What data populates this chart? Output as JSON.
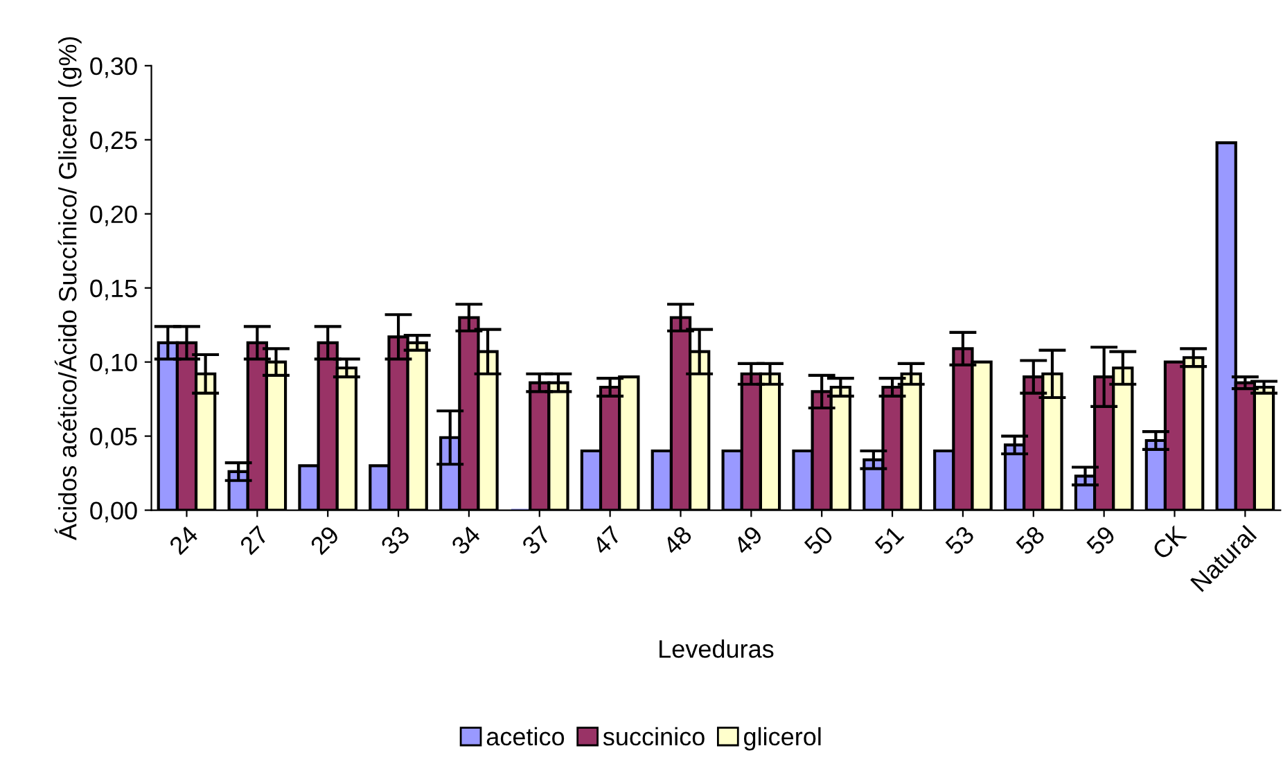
{
  "chart_data": {
    "type": "bar",
    "xlabel": "Leveduras",
    "ylabel": "Ácidos acético/Ácido Succínico/ Glicerol (g%)",
    "categories": [
      "24",
      "27",
      "29",
      "33",
      "34",
      "37",
      "47",
      "48",
      "49",
      "50",
      "51",
      "53",
      "58",
      "59",
      "CK",
      "Natural"
    ],
    "series": [
      {
        "name": "acetico",
        "color": "#9999ff",
        "values": [
          0.113,
          0.026,
          0.03,
          0.03,
          0.049,
          0.0,
          0.04,
          0.04,
          0.04,
          0.04,
          0.034,
          0.04,
          0.044,
          0.023,
          0.047,
          0.248
        ],
        "errors": [
          0.011,
          0.006,
          null,
          null,
          0.018,
          null,
          null,
          null,
          null,
          null,
          0.006,
          null,
          0.006,
          0.006,
          0.006,
          null
        ]
      },
      {
        "name": "succinico",
        "color": "#993366",
        "values": [
          0.113,
          0.113,
          0.113,
          0.117,
          0.13,
          0.086,
          0.083,
          0.13,
          0.092,
          0.08,
          0.083,
          0.109,
          0.09,
          0.09,
          0.1,
          0.086
        ],
        "errors": [
          0.011,
          0.011,
          0.011,
          0.015,
          0.009,
          0.006,
          0.006,
          0.009,
          0.007,
          0.011,
          0.006,
          0.011,
          0.011,
          0.02,
          null,
          0.004
        ]
      },
      {
        "name": "glicerol",
        "color": "#ffffcc",
        "values": [
          0.092,
          0.1,
          0.096,
          0.113,
          0.107,
          0.086,
          0.09,
          0.107,
          0.092,
          0.083,
          0.092,
          0.1,
          0.092,
          0.096,
          0.103,
          0.083
        ],
        "errors": [
          0.013,
          0.009,
          0.006,
          0.005,
          0.015,
          0.006,
          null,
          0.015,
          0.007,
          0.006,
          0.007,
          null,
          0.016,
          0.011,
          0.006,
          0.004
        ]
      }
    ],
    "ylim": [
      0,
      0.3
    ],
    "yticks": [
      {
        "value": 0,
        "label": "0,00"
      },
      {
        "value": 0.05,
        "label": "0,05"
      },
      {
        "value": 0.1,
        "label": "0,10"
      },
      {
        "value": 0.15,
        "label": "0,15"
      },
      {
        "value": 0.2,
        "label": "0,20"
      },
      {
        "value": 0.25,
        "label": "0,25"
      },
      {
        "value": 0.3,
        "label": "0,30"
      }
    ],
    "legend": "bottom",
    "grid": false
  }
}
